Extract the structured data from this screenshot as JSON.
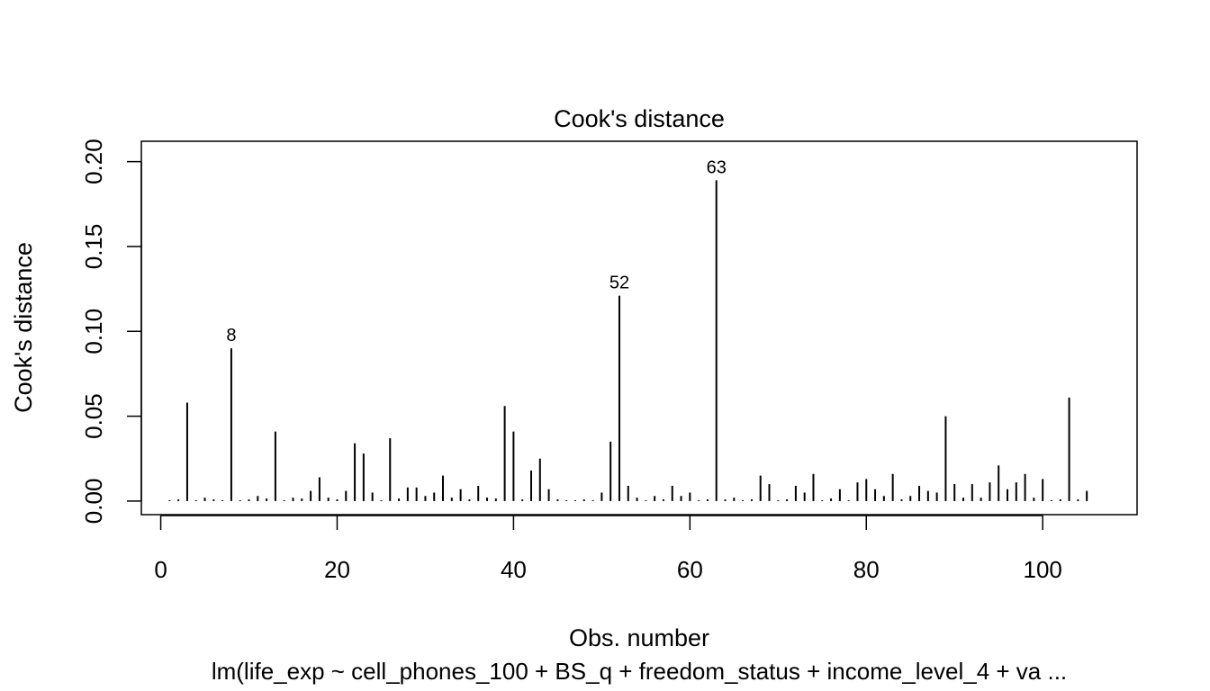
{
  "chart_data": {
    "type": "bar",
    "title": "Cook's distance",
    "xlabel": "Obs. number",
    "ylabel": "Cook's distance",
    "subtitle": "lm(life_exp ~ cell_phones_100 + BS_q + freedom_status + income_level_4 + va ...",
    "xlim": [
      -2.2,
      110.7
    ],
    "ylim": [
      -0.008,
      0.212
    ],
    "x_ticks": [
      0,
      20,
      40,
      60,
      80,
      100
    ],
    "y_ticks": [
      0.0,
      0.05,
      0.1,
      0.15,
      0.2
    ],
    "x_tick_labels": [
      "0",
      "20",
      "40",
      "60",
      "80",
      "100"
    ],
    "y_tick_labels": [
      "0.00",
      "0.05",
      "0.10",
      "0.15",
      "0.20"
    ],
    "grid": false,
    "legend": "none",
    "bar_color": "#000000",
    "x": [
      1,
      2,
      3,
      4,
      5,
      6,
      7,
      8,
      9,
      10,
      11,
      12,
      13,
      14,
      15,
      16,
      17,
      18,
      19,
      20,
      21,
      22,
      23,
      24,
      25,
      26,
      27,
      28,
      29,
      30,
      31,
      32,
      33,
      34,
      35,
      36,
      37,
      38,
      39,
      40,
      41,
      42,
      43,
      44,
      45,
      46,
      47,
      48,
      49,
      50,
      51,
      52,
      53,
      54,
      55,
      56,
      57,
      58,
      59,
      60,
      61,
      62,
      63,
      64,
      65,
      66,
      67,
      68,
      69,
      70,
      71,
      72,
      73,
      74,
      75,
      76,
      77,
      78,
      79,
      80,
      81,
      82,
      83,
      84,
      85,
      86,
      87,
      88,
      89,
      90,
      91,
      92,
      93,
      94,
      95,
      96,
      97,
      98,
      99,
      100,
      101,
      102,
      103,
      104,
      105
    ],
    "values": [
      0.0005,
      0.001,
      0.058,
      0.0005,
      0.002,
      0.001,
      0.0005,
      0.09,
      0.0005,
      0.001,
      0.003,
      0.0015,
      0.041,
      0.0005,
      0.002,
      0.0015,
      0.006,
      0.014,
      0.002,
      0.001,
      0.006,
      0.034,
      0.028,
      0.005,
      0.0005,
      0.037,
      0.0015,
      0.008,
      0.008,
      0.003,
      0.005,
      0.015,
      0.002,
      0.007,
      0.001,
      0.009,
      0.002,
      0.0015,
      0.056,
      0.041,
      0.001,
      0.018,
      0.025,
      0.007,
      0.001,
      0.0005,
      0.0005,
      0.001,
      0.0005,
      0.005,
      0.035,
      0.121,
      0.009,
      0.002,
      0.0005,
      0.003,
      0.001,
      0.009,
      0.003,
      0.005,
      0.0005,
      0.001,
      0.189,
      0.001,
      0.002,
      0.0005,
      0.001,
      0.015,
      0.01,
      0.0005,
      0.001,
      0.009,
      0.005,
      0.016,
      0.0005,
      0.0015,
      0.007,
      0.0005,
      0.011,
      0.013,
      0.007,
      0.003,
      0.016,
      0.001,
      0.003,
      0.009,
      0.006,
      0.005,
      0.05,
      0.01,
      0.002,
      0.01,
      0.002,
      0.011,
      0.021,
      0.007,
      0.011,
      0.016,
      0.002,
      0.013,
      0.0005,
      0.001,
      0.061,
      0.001,
      0.006
    ],
    "annotations": [
      {
        "x": 8,
        "y": 0.09,
        "text": "8"
      },
      {
        "x": 52,
        "y": 0.121,
        "text": "52"
      },
      {
        "x": 63,
        "y": 0.189,
        "text": "63"
      }
    ]
  }
}
